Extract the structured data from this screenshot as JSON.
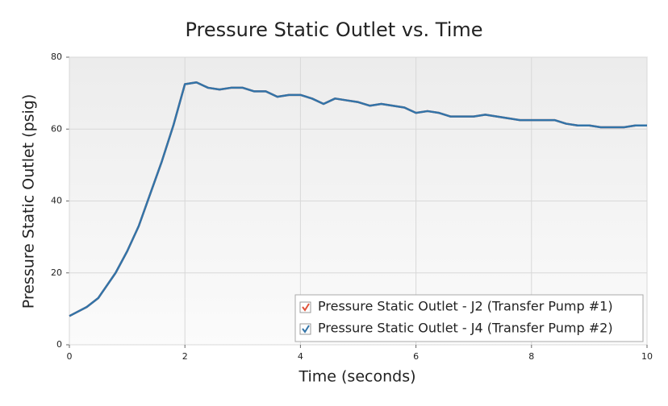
{
  "chart_data": {
    "type": "line",
    "title": "Pressure Static Outlet vs. Time",
    "x_label": "Time (seconds)",
    "y_label": "Pressure Static Outlet (psig)",
    "x": [
      0,
      0.3,
      0.5,
      0.8,
      1.0,
      1.2,
      1.4,
      1.6,
      1.8,
      2.0,
      2.2,
      2.4,
      2.6,
      2.8,
      3.0,
      3.2,
      3.4,
      3.6,
      3.8,
      4.0,
      4.2,
      4.4,
      4.6,
      4.8,
      5.0,
      5.2,
      5.4,
      5.6,
      5.8,
      6.0,
      6.2,
      6.4,
      6.6,
      6.8,
      7.0,
      7.2,
      7.4,
      7.6,
      7.8,
      8.0,
      8.2,
      8.4,
      8.6,
      8.8,
      9.0,
      9.2,
      9.4,
      9.6,
      9.8,
      10
    ],
    "series": [
      {
        "name": "Pressure Static Outlet - J2 (Transfer Pump #1)",
        "color": "#e0533a",
        "values": [
          8,
          10.5,
          13,
          20,
          26,
          33,
          42,
          51,
          61,
          72.5,
          73,
          71.5,
          71,
          71.5,
          71.5,
          70.5,
          70.5,
          69,
          69.5,
          69.5,
          68.5,
          67,
          68.5,
          68,
          67.5,
          66.5,
          67,
          66.5,
          66,
          64.5,
          65,
          64.5,
          63.5,
          63.5,
          63.5,
          64,
          63.5,
          63,
          62.5,
          62.5,
          62.5,
          62.5,
          61.5,
          61,
          61,
          60.5,
          60.5,
          60.5,
          61,
          61
        ]
      },
      {
        "name": "Pressure Static Outlet - J4 (Transfer Pump #2)",
        "color": "#3274a8",
        "values": [
          8,
          10.5,
          13,
          20,
          26,
          33,
          42,
          51,
          61,
          72.5,
          73,
          71.5,
          71,
          71.5,
          71.5,
          70.5,
          70.5,
          69,
          69.5,
          69.5,
          68.5,
          67,
          68.5,
          68,
          67.5,
          66.5,
          67,
          66.5,
          66,
          64.5,
          65,
          64.5,
          63.5,
          63.5,
          63.5,
          64,
          63.5,
          63,
          62.5,
          62.5,
          62.5,
          62.5,
          61.5,
          61,
          61,
          60.5,
          60.5,
          60.5,
          61,
          61
        ]
      }
    ],
    "xlim": [
      0,
      10
    ],
    "xticks": [
      0,
      2,
      4,
      6,
      8,
      10
    ],
    "ylim": [
      0,
      80
    ],
    "yticks": [
      0,
      20,
      40,
      60,
      80
    ],
    "grid": true
  }
}
